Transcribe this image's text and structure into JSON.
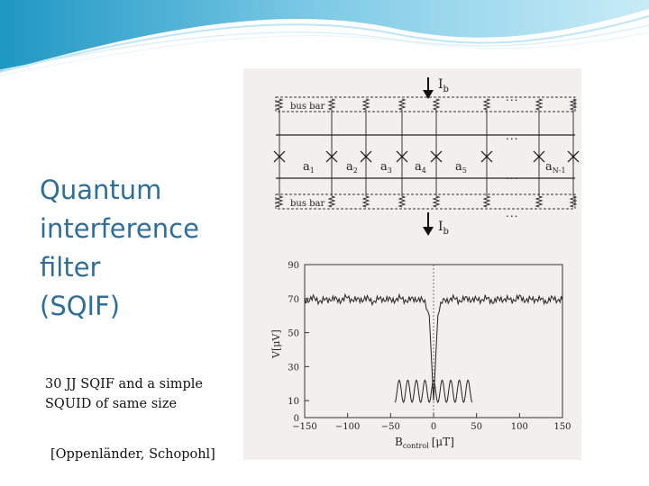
{
  "title_lines": [
    "Quantum",
    "interference",
    "filter",
    "(SQIF)"
  ],
  "caption_lines": [
    "30 JJ SQIF and a simple",
    "SQUID of same size"
  ],
  "citation": "[Oppenländer, Schopohl]",
  "colors": {
    "title": "#2e6f9a",
    "wave_dark": "#2aa3c9",
    "wave_light": "#a9dcef",
    "figure_bg": "#f2f0ec"
  },
  "circuit": {
    "top_bus_label": "bus bar",
    "bottom_bus_label": "bus bar",
    "current_label": "I",
    "current_sub": "b",
    "ellipsis": "...",
    "junction_labels": [
      {
        "base": "a",
        "sub": "1"
      },
      {
        "base": "a",
        "sub": "2"
      },
      {
        "base": "a",
        "sub": "3"
      },
      {
        "base": "a",
        "sub": "4"
      },
      {
        "base": "a",
        "sub": "5"
      },
      {
        "base": "a",
        "sub": "N-1"
      }
    ]
  },
  "chart_data": {
    "type": "line",
    "xlabel_base": "B",
    "xlabel_sub": "control",
    "xlabel_unit": "[μT]",
    "ylabel": "V[μV]",
    "xlim": [
      -150,
      150
    ],
    "ylim": [
      0,
      90
    ],
    "x_ticks": [
      "−150",
      "−100",
      "−50",
      "0",
      "50",
      "100",
      "150"
    ],
    "y_ticks": [
      "0",
      "10",
      "30",
      "50",
      "70",
      "90"
    ],
    "series": [
      {
        "values_desc": "SQIF: noisy plateau near 70 μV with a sharp dip to about 10 μV at B = 0"
      },
      {
        "values_desc": "SQUID: periodic oscillation between about 9 and 22 μV for B from about −45 to 45 μT"
      }
    ],
    "sqif": {
      "plateau": 69,
      "dip_min": 10,
      "points": [
        [
          -150,
          69
        ],
        [
          -140,
          70
        ],
        [
          -130,
          68.5
        ],
        [
          -120,
          70
        ],
        [
          -110,
          69
        ],
        [
          -100,
          70.5
        ],
        [
          -90,
          69
        ],
        [
          -80,
          70
        ],
        [
          -70,
          68.5
        ],
        [
          -60,
          70
        ],
        [
          -50,
          69
        ],
        [
          -40,
          70
        ],
        [
          -30,
          69
        ],
        [
          -20,
          70
        ],
        [
          -10,
          68
        ],
        [
          -5,
          60
        ],
        [
          -2,
          30
        ],
        [
          0,
          10
        ],
        [
          2,
          30
        ],
        [
          5,
          60
        ],
        [
          10,
          68
        ],
        [
          20,
          70
        ],
        [
          30,
          69
        ],
        [
          40,
          70
        ],
        [
          50,
          69
        ],
        [
          60,
          70
        ],
        [
          70,
          68.5
        ],
        [
          80,
          70
        ],
        [
          90,
          69
        ],
        [
          100,
          70.5
        ],
        [
          110,
          69
        ],
        [
          120,
          70
        ],
        [
          130,
          68.5
        ],
        [
          140,
          70
        ],
        [
          150,
          69
        ]
      ]
    },
    "squid": {
      "x_range": [
        -45,
        45
      ],
      "min": 9,
      "max": 22,
      "period": 10
    }
  }
}
